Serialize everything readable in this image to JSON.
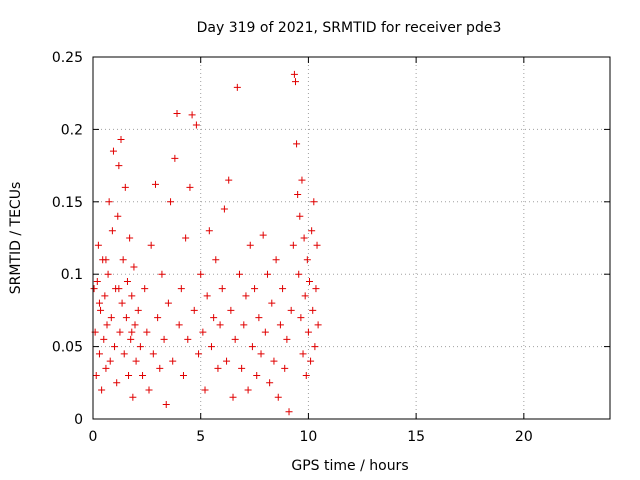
{
  "chart_data": {
    "type": "scatter",
    "title": "Day 319 of 2021, SRMTID for receiver pde3",
    "xlabel": "GPS time / hours",
    "ylabel": "SRMTID / TECUs",
    "xlim": [
      0,
      24
    ],
    "ylim": [
      0,
      0.25
    ],
    "xticks": [
      0,
      5,
      10,
      15,
      20
    ],
    "xtick_labels": [
      "0",
      "5",
      "10",
      "15",
      "20"
    ],
    "yticks": [
      0,
      0.05,
      0.1,
      0.15,
      0.2,
      0.25
    ],
    "ytick_labels": [
      "0",
      "0.05",
      "0.1",
      "0.15",
      "0.2",
      "0.25"
    ],
    "grid": true,
    "marker": "plus",
    "color": "#e00000",
    "series": [
      {
        "name": "SRMTID",
        "points": [
          [
            0.05,
            0.09
          ],
          [
            0.1,
            0.06
          ],
          [
            0.15,
            0.03
          ],
          [
            0.2,
            0.095
          ],
          [
            0.25,
            0.12
          ],
          [
            0.3,
            0.045
          ],
          [
            0.35,
            0.075
          ],
          [
            0.4,
            0.02
          ],
          [
            0.45,
            0.11
          ],
          [
            0.5,
            0.055
          ],
          [
            0.55,
            0.085
          ],
          [
            0.6,
            0.035
          ],
          [
            0.65,
            0.065
          ],
          [
            0.7,
            0.1
          ],
          [
            0.75,
            0.15
          ],
          [
            0.8,
            0.04
          ],
          [
            0.85,
            0.07
          ],
          [
            0.9,
            0.13
          ],
          [
            0.95,
            0.185
          ],
          [
            1.0,
            0.05
          ],
          [
            1.05,
            0.09
          ],
          [
            1.1,
            0.025
          ],
          [
            1.15,
            0.14
          ],
          [
            1.2,
            0.175
          ],
          [
            1.25,
            0.06
          ],
          [
            1.3,
            0.193
          ],
          [
            1.35,
            0.08
          ],
          [
            1.4,
            0.11
          ],
          [
            1.45,
            0.045
          ],
          [
            1.5,
            0.16
          ],
          [
            1.55,
            0.07
          ],
          [
            1.6,
            0.095
          ],
          [
            1.65,
            0.03
          ],
          [
            1.7,
            0.125
          ],
          [
            1.75,
            0.055
          ],
          [
            1.8,
            0.085
          ],
          [
            1.85,
            0.015
          ],
          [
            1.9,
            0.105
          ],
          [
            1.95,
            0.065
          ],
          [
            2.0,
            0.04
          ],
          [
            2.1,
            0.075
          ],
          [
            2.2,
            0.05
          ],
          [
            2.3,
            0.03
          ],
          [
            2.4,
            0.09
          ],
          [
            2.5,
            0.06
          ],
          [
            2.6,
            0.02
          ],
          [
            2.7,
            0.12
          ],
          [
            2.8,
            0.045
          ],
          [
            2.9,
            0.162
          ],
          [
            3.0,
            0.07
          ],
          [
            3.1,
            0.035
          ],
          [
            3.2,
            0.1
          ],
          [
            3.3,
            0.055
          ],
          [
            3.4,
            0.01
          ],
          [
            3.5,
            0.08
          ],
          [
            3.6,
            0.15
          ],
          [
            3.7,
            0.04
          ],
          [
            3.8,
            0.18
          ],
          [
            3.9,
            0.211
          ],
          [
            4.0,
            0.065
          ],
          [
            4.1,
            0.09
          ],
          [
            4.2,
            0.03
          ],
          [
            4.3,
            0.125
          ],
          [
            4.4,
            0.055
          ],
          [
            4.5,
            0.16
          ],
          [
            4.6,
            0.21
          ],
          [
            4.7,
            0.075
          ],
          [
            4.8,
            0.203
          ],
          [
            4.9,
            0.045
          ],
          [
            5.0,
            0.1
          ],
          [
            5.1,
            0.06
          ],
          [
            5.2,
            0.02
          ],
          [
            5.3,
            0.085
          ],
          [
            5.4,
            0.13
          ],
          [
            5.5,
            0.05
          ],
          [
            5.6,
            0.07
          ],
          [
            5.7,
            0.11
          ],
          [
            5.8,
            0.035
          ],
          [
            5.9,
            0.065
          ],
          [
            6.0,
            0.09
          ],
          [
            6.1,
            0.145
          ],
          [
            6.2,
            0.04
          ],
          [
            6.3,
            0.165
          ],
          [
            6.4,
            0.075
          ],
          [
            6.5,
            0.015
          ],
          [
            6.6,
            0.055
          ],
          [
            6.7,
            0.229
          ],
          [
            6.8,
            0.1
          ],
          [
            6.9,
            0.035
          ],
          [
            7.0,
            0.065
          ],
          [
            7.1,
            0.085
          ],
          [
            7.2,
            0.02
          ],
          [
            7.3,
            0.12
          ],
          [
            7.4,
            0.05
          ],
          [
            7.5,
            0.09
          ],
          [
            7.6,
            0.03
          ],
          [
            7.7,
            0.07
          ],
          [
            7.8,
            0.045
          ],
          [
            7.9,
            0.127
          ],
          [
            8.0,
            0.06
          ],
          [
            8.1,
            0.1
          ],
          [
            8.2,
            0.025
          ],
          [
            8.3,
            0.08
          ],
          [
            8.4,
            0.04
          ],
          [
            8.5,
            0.11
          ],
          [
            8.6,
            0.015
          ],
          [
            8.7,
            0.065
          ],
          [
            8.8,
            0.09
          ],
          [
            8.9,
            0.035
          ],
          [
            9.0,
            0.055
          ],
          [
            9.1,
            0.005
          ],
          [
            9.2,
            0.075
          ],
          [
            9.3,
            0.12
          ],
          [
            9.35,
            0.238
          ],
          [
            9.4,
            0.233
          ],
          [
            9.45,
            0.19
          ],
          [
            9.5,
            0.155
          ],
          [
            9.55,
            0.1
          ],
          [
            9.6,
            0.14
          ],
          [
            9.65,
            0.07
          ],
          [
            9.7,
            0.165
          ],
          [
            9.75,
            0.045
          ],
          [
            9.8,
            0.125
          ],
          [
            9.85,
            0.085
          ],
          [
            9.9,
            0.03
          ],
          [
            9.95,
            0.11
          ],
          [
            10.0,
            0.06
          ],
          [
            10.05,
            0.095
          ],
          [
            10.1,
            0.04
          ],
          [
            10.15,
            0.13
          ],
          [
            10.2,
            0.075
          ],
          [
            10.25,
            0.15
          ],
          [
            10.3,
            0.05
          ],
          [
            10.35,
            0.09
          ],
          [
            10.4,
            0.12
          ],
          [
            10.45,
            0.065
          ],
          [
            0.3,
            0.08
          ],
          [
            0.6,
            0.11
          ],
          [
            1.2,
            0.09
          ],
          [
            1.8,
            0.06
          ]
        ]
      }
    ]
  }
}
